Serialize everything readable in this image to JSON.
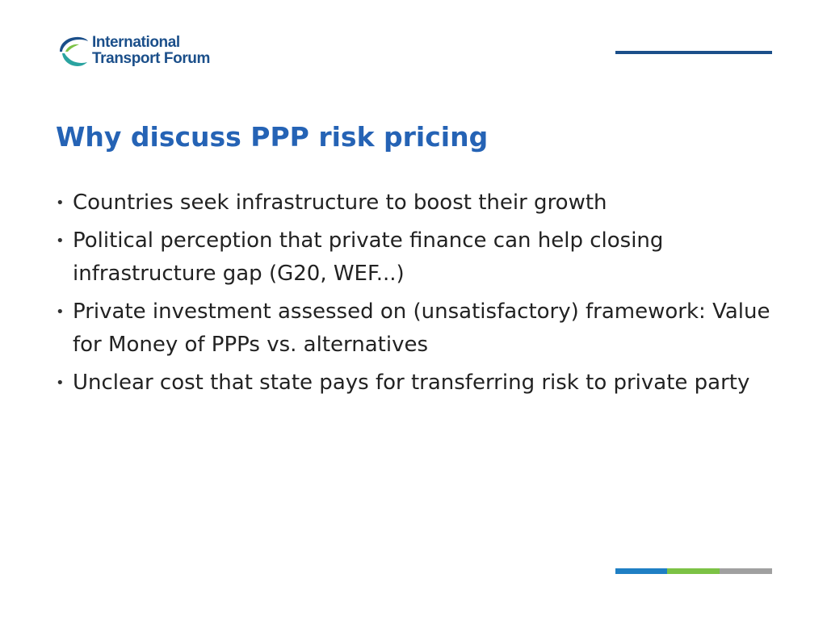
{
  "logo": {
    "line1": "International",
    "line2": "Transport Forum",
    "colors": {
      "text": "#1b4f8a",
      "swoosh_blue": "#1b4f8a",
      "swoosh_teal": "#2aa3a0",
      "swoosh_green": "#7cc245"
    }
  },
  "title": "Why discuss PPP risk pricing",
  "bullets": [
    "Countries seek infrastructure to boost their growth",
    "Political perception that private finance can help closing infrastructure gap (G20, WEF...)",
    "Private investment assessed on (unsatisfactory) framework: Value for Money of PPPs vs. alternatives",
    "Unclear cost that state pays for transferring risk to private party"
  ],
  "bullet_glyph": "•",
  "colors": {
    "title": "#2563b5",
    "top_rule": "#1b4f8a",
    "footer": [
      "#1f7fc4",
      "#7cc245",
      "#a0a0a0"
    ]
  }
}
